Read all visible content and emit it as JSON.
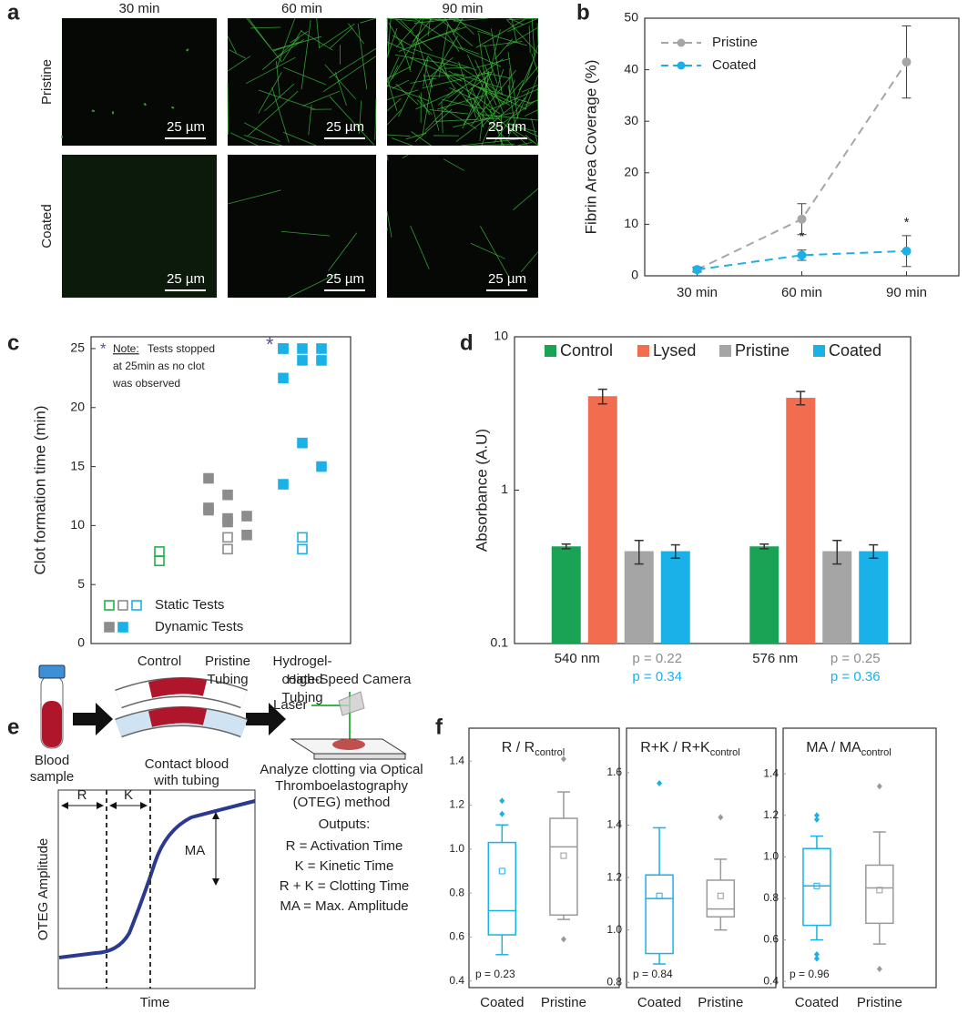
{
  "images": {
    "panel": "a",
    "columns": [
      "30 min",
      "60 min",
      "90 min"
    ],
    "rows": [
      "Pristine",
      "Coated"
    ],
    "scale_bar": "25 µm"
  },
  "chart_data": [
    {
      "type": "line",
      "panel": "b",
      "y_label": "Fibrin Area Coverage (%)",
      "categories": [
        "30 min",
        "60 min",
        "90 min"
      ],
      "series": [
        {
          "name": "Pristine",
          "color": "#a6a6a6",
          "values": [
            1.2,
            11,
            41.5
          ],
          "errors": [
            0.5,
            3,
            7
          ]
        },
        {
          "name": "Coated",
          "color": "#1ab0e8",
          "values": [
            1.2,
            4,
            4.8
          ],
          "errors": [
            0.4,
            1,
            3
          ]
        }
      ],
      "significance": [
        null,
        "*",
        "*"
      ],
      "ylim": [
        0,
        50
      ],
      "yticks": [
        0,
        10,
        20,
        30,
        40,
        50
      ],
      "legend": "upper left"
    },
    {
      "type": "strip",
      "panel": "c",
      "y_label": "Clot formation time (min)",
      "categories": [
        [
          "Control"
        ],
        [
          "Pristine",
          "Tubing"
        ],
        [
          "Hydrogel-",
          "coated",
          "Tubing"
        ]
      ],
      "category_colors": [
        "#22b14c",
        "#8c8c8c",
        "#1ab0e8"
      ],
      "series": [
        {
          "name": "Static Tests",
          "filled": false,
          "values": [
            [
              7.8,
              7
            ],
            [
              9,
              8
            ],
            [
              9,
              8
            ]
          ]
        },
        {
          "name": "Dynamic Tests",
          "filled": true,
          "values": [
            [],
            [
              11.3,
              10.3,
              9.2,
              14,
              12.6,
              10.8,
              11.5,
              10.6
            ],
            [
              25,
              25,
              25,
              25,
              24,
              24,
              22.5,
              17,
              15,
              13.5
            ]
          ]
        }
      ],
      "ylim": [
        0,
        26
      ],
      "yticks": [
        0,
        5,
        10,
        15,
        20,
        25
      ],
      "note": {
        "marker": "*",
        "label": "Note:",
        "lines": [
          "Tests stopped",
          "at 25min as no clot",
          "was observed"
        ]
      },
      "note_color": "#5b4fa0",
      "capped_marker": "*",
      "legend": "lower left"
    },
    {
      "type": "bar",
      "panel": "d",
      "y_label": "Absorbance (A.U)",
      "log_scale": true,
      "categories": [
        "540 nm",
        "576 nm"
      ],
      "series": [
        {
          "name": "Control",
          "color": "#1aa354",
          "values": [
            0.43,
            0.43
          ],
          "errors": [
            0.015,
            0.015
          ]
        },
        {
          "name": "Lysed",
          "color": "#f26d4f",
          "values": [
            4.1,
            4.0
          ],
          "errors": [
            0.45,
            0.4
          ]
        },
        {
          "name": "Pristine",
          "color": "#a5a5a5",
          "values": [
            0.4,
            0.4
          ],
          "errors": [
            0.07,
            0.07
          ]
        },
        {
          "name": "Coated",
          "color": "#1ab0e8",
          "values": [
            0.4,
            0.4
          ],
          "errors": [
            0.04,
            0.04
          ]
        }
      ],
      "annotations": [
        [
          "p = 0.22",
          "p = 0.34"
        ],
        [
          "p = 0.25",
          "p = 0.36"
        ]
      ],
      "annotation_colors": [
        "#8c8c8c",
        "#1ab0e8"
      ],
      "ylim": [
        0.1,
        10
      ],
      "yticks": [
        0.1,
        1,
        10
      ],
      "legend": "upper center"
    },
    {
      "type": "box",
      "panel": "f",
      "title": "R / R",
      "title_sub": "control",
      "categories": [
        "Coated",
        "Pristine"
      ],
      "colors": [
        "#1ab0e8",
        "#999999"
      ],
      "boxes": [
        {
          "whislo": 0.52,
          "q1": 0.61,
          "med": 0.72,
          "q3": 1.03,
          "whishi": 1.11,
          "mean": 0.9,
          "fliers": [
            1.16,
            1.22
          ]
        },
        {
          "whislo": 0.68,
          "q1": 0.7,
          "med": 1.01,
          "q3": 1.14,
          "whishi": 1.26,
          "mean": 0.97,
          "fliers": [
            0.59,
            1.41
          ]
        }
      ],
      "p_value": "p = 0.23",
      "ylim": [
        0.37,
        1.55
      ],
      "yticks": [
        0.4,
        0.6,
        0.8,
        {
          "value": 1,
          "label": "1.0"
        },
        1.2,
        1.4
      ]
    },
    {
      "type": "box",
      "title": "R+K / R+K",
      "title_sub": "control",
      "categories": [
        "Coated",
        "Pristine"
      ],
      "colors": [
        "#1ab0e8",
        "#999999"
      ],
      "boxes": [
        {
          "whislo": 0.87,
          "q1": 0.91,
          "med": 1.12,
          "q3": 1.21,
          "whishi": 1.39,
          "mean": 1.13,
          "fliers": [
            1.56
          ]
        },
        {
          "whislo": 1.0,
          "q1": 1.05,
          "med": 1.08,
          "q3": 1.19,
          "whishi": 1.27,
          "mean": 1.13,
          "fliers": [
            1.43
          ]
        }
      ],
      "p_value": "p = 0.84",
      "ylim": [
        0.78,
        1.77
      ],
      "yticks": [
        0.8,
        {
          "value": 1,
          "label": "1.0"
        },
        1.2,
        1.4,
        1.6
      ]
    },
    {
      "type": "box",
      "title": "MA / MA",
      "title_sub": "control",
      "categories": [
        "Coated",
        "Pristine"
      ],
      "colors": [
        "#1ab0e8",
        "#999999"
      ],
      "boxes": [
        {
          "whislo": 0.6,
          "q1": 0.67,
          "med": 0.86,
          "q3": 1.04,
          "whishi": 1.1,
          "mean": 0.86,
          "fliers": [
            1.18,
            1.2,
            0.53,
            0.51
          ]
        },
        {
          "whislo": 0.58,
          "q1": 0.68,
          "med": 0.85,
          "q3": 0.96,
          "whishi": 1.12,
          "mean": 0.84,
          "fliers": [
            1.34,
            0.46
          ]
        }
      ],
      "p_value": "p = 0.96",
      "ylim": [
        0.37,
        1.62
      ],
      "yticks": [
        0.4,
        0.6,
        0.8,
        {
          "value": 1,
          "label": "1.0"
        },
        1.2,
        1.4
      ]
    }
  ],
  "diagram": {
    "panel": "e",
    "sample": [
      "Blood",
      "sample"
    ],
    "contact": [
      "Contact blood",
      "with tubing"
    ],
    "camera": "High-Speed Camera",
    "laser": "Laser",
    "analyze": [
      "Analyze clotting via Optical",
      "Thromboelastography",
      "(OTEG) method"
    ],
    "graph": {
      "y_label": "OTEG Amplitude",
      "x_label": "Time",
      "r": "R",
      "k": "K",
      "ma": "MA"
    },
    "outputs": {
      "title": "Outputs:",
      "lines": [
        "R = Activation Time",
        "K = Kinetic Time",
        "R + K = Clotting Time",
        "MA = Max. Amplitude"
      ]
    }
  }
}
